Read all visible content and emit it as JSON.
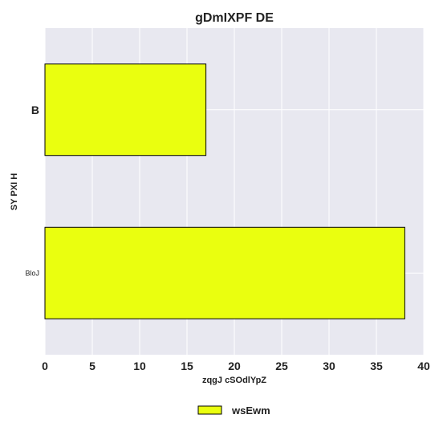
{
  "chart_data": {
    "type": "bar",
    "orientation": "horizontal",
    "title": "gDmIXPF DE",
    "xlabel": "zqgJ cSOdlYpZ",
    "ylabel": "SY PXI H",
    "categories": [
      "B",
      "BloJ"
    ],
    "series": [
      {
        "name": "wsEwm",
        "values": [
          17,
          38
        ]
      }
    ],
    "xlim": [
      0,
      40
    ],
    "xticks": [
      0,
      5,
      10,
      15,
      20,
      25,
      30,
      35,
      40
    ],
    "grid": true,
    "legend_position": "bottom-center",
    "colors": {
      "bar_fill": "#eaff0f",
      "bar_stroke": "#000000",
      "plot_background": "#e8e8f0",
      "grid": "#ffffff",
      "text": "#222222"
    }
  }
}
